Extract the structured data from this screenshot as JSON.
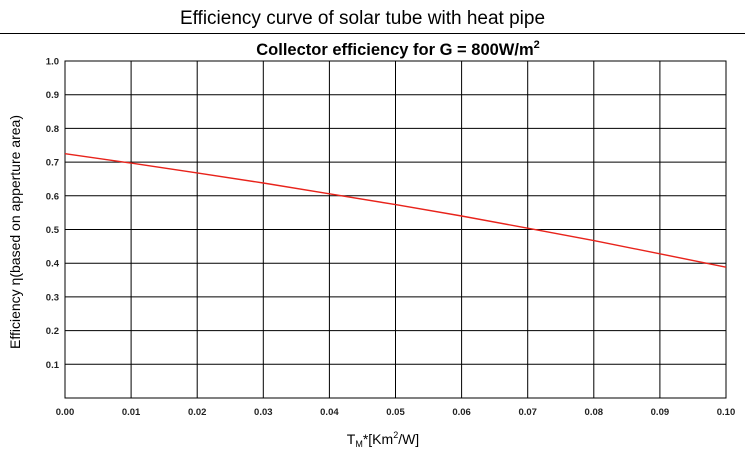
{
  "page_title": "Efficiency curve of solar tube with heat pipe",
  "chart_data": {
    "type": "line",
    "title_main": "Collector efficiency for G = 800W/m",
    "title_sup": "2",
    "xlabel_main": "T",
    "xlabel_sub": "M",
    "xlabel_rest": "*[Km",
    "xlabel_sup": "2",
    "xlabel_end": "/W]",
    "ylabel": "Efficiency η(based on apperture area)",
    "xlim": [
      0.0,
      0.1
    ],
    "ylim": [
      0.0,
      1.0
    ],
    "x_ticks": [
      "0.00",
      "0.01",
      "0.02",
      "0.03",
      "0.04",
      "0.05",
      "0.06",
      "0.07",
      "0.08",
      "0.09",
      "0.10"
    ],
    "y_ticks": [
      "0.1",
      "0.2",
      "0.3",
      "0.4",
      "0.5",
      "0.6",
      "0.7",
      "0.8",
      "0.9",
      "1.0"
    ],
    "grid": true,
    "series": [
      {
        "color": "#e8231b",
        "x": [
          0.0,
          0.01,
          0.02,
          0.03,
          0.04,
          0.05,
          0.06,
          0.07,
          0.08,
          0.09,
          0.1
        ],
        "y": [
          0.725,
          0.697,
          0.668,
          0.638,
          0.606,
          0.574,
          0.54,
          0.504,
          0.467,
          0.428,
          0.388
        ]
      }
    ]
  }
}
